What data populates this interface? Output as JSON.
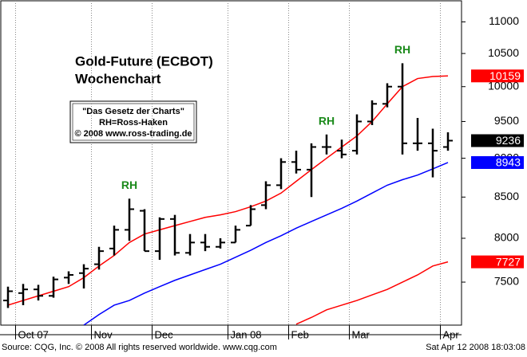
{
  "chart_data": {
    "type": "ohlc",
    "title": "Gold-Future (ECBOT)",
    "subtitle": "Wochenchart",
    "note_box": [
      "\"Das Gesetz der Charts\"",
      "RH=Ross-Haken",
      "© 2008 www.ross-trading.de"
    ],
    "categories": [
      null,
      "Oct 07",
      null,
      null,
      null,
      null,
      "Nov",
      null,
      null,
      null,
      "Dec",
      null,
      null,
      null,
      null,
      "Jan 08",
      null,
      null,
      null,
      "Feb",
      null,
      null,
      null,
      "Mar",
      null,
      null,
      null,
      null,
      null,
      "Apr"
    ],
    "open": [
      7300,
      7380,
      7420,
      7350,
      7550,
      7600,
      7700,
      7880,
      8100,
      8330,
      7850,
      8230,
      7830,
      7950,
      7900,
      7950,
      8150,
      8400,
      8650,
      8950,
      8850,
      9150,
      9100,
      9100,
      9500,
      9750,
      10000,
      9200,
      9200,
      9150
    ],
    "high": [
      7450,
      7480,
      7470,
      7560,
      7620,
      7700,
      7900,
      8150,
      8480,
      8350,
      8250,
      8280,
      8050,
      8050,
      8000,
      8150,
      8400,
      8700,
      9000,
      9100,
      9200,
      9320,
      9250,
      9600,
      9800,
      10050,
      10350,
      9550,
      9400,
      9350
    ],
    "low": [
      7220,
      7250,
      7300,
      7330,
      7480,
      7430,
      7640,
      7800,
      7970,
      7850,
      7750,
      7800,
      7800,
      7850,
      7880,
      7950,
      8150,
      8350,
      8600,
      8800,
      8500,
      9050,
      9000,
      9050,
      9450,
      9700,
      9050,
      9100,
      8750,
      9100
    ],
    "close": [
      7400,
      7420,
      7350,
      7530,
      7580,
      7650,
      7850,
      8100,
      8350,
      7850,
      8230,
      7830,
      7950,
      7900,
      7950,
      8100,
      8350,
      8650,
      8950,
      8850,
      9150,
      9150,
      9050,
      9500,
      9750,
      10000,
      9200,
      9200,
      9100,
      9236
    ],
    "color": "#000000",
    "lines": [
      {
        "color": "#ff0000",
        "values": [
          7250,
          7300,
          7350,
          7400,
          7450,
          7550,
          7680,
          7800,
          7950,
          8050,
          8100,
          8150,
          8200,
          8250,
          8280,
          8320,
          8380,
          8450,
          8550,
          8700,
          8850,
          9000,
          9150,
          9300,
          9500,
          9750,
          10000,
          10120,
          10150,
          10159
        ]
      },
      {
        "color": "#0000ff",
        "values": [
          null,
          null,
          null,
          null,
          null,
          7040,
          7150,
          7250,
          7300,
          7380,
          7450,
          7520,
          7580,
          7640,
          7700,
          7780,
          7860,
          7950,
          8030,
          8120,
          8200,
          8280,
          8360,
          8450,
          8550,
          8650,
          8720,
          8780,
          8860,
          8943
        ]
      },
      {
        "color": "#ff0000",
        "values": [
          null,
          null,
          null,
          null,
          null,
          null,
          null,
          null,
          null,
          null,
          null,
          null,
          null,
          null,
          null,
          null,
          null,
          null,
          null,
          7050,
          7120,
          7200,
          7250,
          7300,
          7360,
          7420,
          7500,
          7580,
          7680,
          7727
        ]
      }
    ],
    "last_values": [
      {
        "value": 10159,
        "color": "#ff0000"
      },
      {
        "value": 9236,
        "color": "#000000"
      },
      {
        "value": 8943,
        "color": "#0000ff"
      },
      {
        "value": 7727,
        "color": "#ff0000"
      }
    ],
    "annotations": [
      {
        "text": "RH",
        "x": 8
      },
      {
        "text": "RH",
        "x": 21
      },
      {
        "text": "RH",
        "x": 26
      }
    ],
    "ylim": [
      7040,
      11360
    ],
    "yticks": [
      7500,
      8000,
      8500,
      9000,
      9500,
      10000,
      10500,
      11000
    ],
    "log_scale": true,
    "source": "Source: CQG, Inc. © 2008 All rights reserved worldwide. www.cqg.com",
    "timestamp": "Sat Apr 12 2008 18:03:08"
  }
}
